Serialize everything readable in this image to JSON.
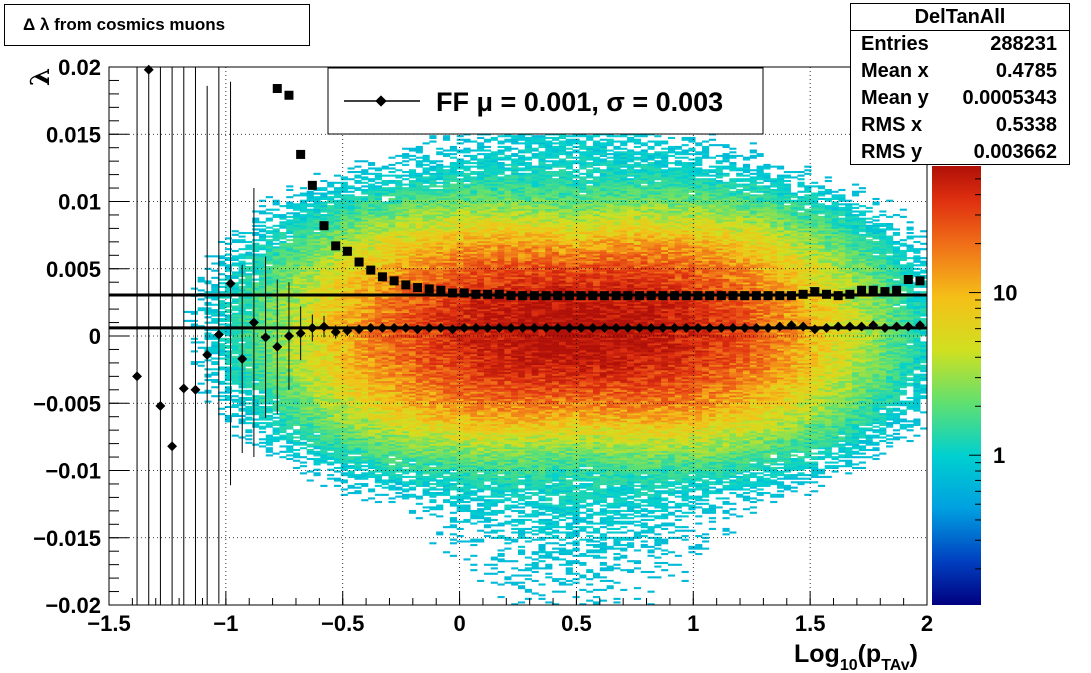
{
  "title": "Δ λ from cosmics muons",
  "stats": {
    "name": "DelTanAll",
    "rows": [
      {
        "label": "Entries",
        "value": "288231"
      },
      {
        "label": "Mean x",
        "value": "0.4785"
      },
      {
        "label": "Mean y",
        "value": "0.0005343"
      },
      {
        "label": "RMS x",
        "value": "0.5338"
      },
      {
        "label": "RMS y",
        "value": "0.003662"
      }
    ]
  },
  "legend": {
    "entry": "FF μ =  0.001, σ =   0.003"
  },
  "colors": {
    "markers": "#000000",
    "palette": [
      "#000080",
      "#0040c0",
      "#00a0e0",
      "#00d0d0",
      "#60e070",
      "#d0e020",
      "#f5c018",
      "#f07018",
      "#e03010",
      "#b01008"
    ]
  },
  "chart_data": {
    "type": "heatmap",
    "xlabel": "Log",
    "xlabel_sub": "10",
    "xlabel_rest": "(p",
    "xlabel_rest_sub": "TAv",
    "xlabel_close": ")",
    "ylabel": "λ",
    "xlim": [
      -1.5,
      2
    ],
    "ylim": [
      -0.02,
      0.02
    ],
    "x_ticks": [
      -1.5,
      -1,
      -0.5,
      0,
      0.5,
      1,
      1.5,
      2
    ],
    "x_tick_labels": [
      "−1.5",
      "−1",
      "−0.5",
      "0",
      "0.5",
      "1",
      "1.5",
      "2"
    ],
    "y_ticks": [
      -0.02,
      -0.015,
      -0.01,
      -0.005,
      0,
      0.005,
      0.01,
      0.015,
      0.02
    ],
    "y_tick_labels": [
      "−0.02",
      "−0.015",
      "−0.01",
      "−0.005",
      "0",
      "0.005",
      "0.01",
      "0.015",
      "0.02"
    ],
    "grid": true,
    "colorbar": {
      "scale": "log",
      "tick_values": [
        1,
        10
      ],
      "tick_labels": [
        "1",
        "10"
      ]
    },
    "density_model": {
      "center_x": 0.5,
      "center_y": 0.0005,
      "peak_count": 60
    },
    "mean_profile": {
      "x": [
        -1.38,
        -1.33,
        -1.28,
        -1.23,
        -1.18,
        -1.13,
        -1.08,
        -1.03,
        -0.98,
        -0.93,
        -0.88,
        -0.83,
        -0.78,
        -0.73,
        -0.68,
        -0.63,
        -0.58,
        -0.53,
        -0.48,
        -0.43,
        -0.38,
        -0.33,
        -0.28,
        -0.23,
        -0.18,
        -0.13,
        -0.08,
        -0.03,
        0.02,
        0.07,
        0.12,
        0.17,
        0.22,
        0.27,
        0.32,
        0.37,
        0.42,
        0.47,
        0.52,
        0.57,
        0.62,
        0.67,
        0.72,
        0.77,
        0.82,
        0.87,
        0.92,
        0.97,
        1.02,
        1.07,
        1.12,
        1.17,
        1.22,
        1.27,
        1.32,
        1.37,
        1.42,
        1.47,
        1.52,
        1.57,
        1.62,
        1.67,
        1.72,
        1.77,
        1.82,
        1.87,
        1.92,
        1.97
      ],
      "y": [
        -0.003,
        0.0198,
        -0.0052,
        -0.0082,
        -0.0039,
        -0.004,
        -0.0014,
        0.0001,
        0.0039,
        -0.0017,
        0.001,
        -0.0001,
        -0.0008,
        0.0,
        0.0002,
        0.0006,
        0.0007,
        0.0003,
        0.0004,
        0.0005,
        0.0006,
        0.0006,
        0.0006,
        0.0006,
        0.0005,
        0.0006,
        0.0006,
        0.0005,
        0.0006,
        0.0006,
        0.0006,
        0.0006,
        0.0006,
        0.0006,
        0.0006,
        0.0006,
        0.0006,
        0.0006,
        0.0006,
        0.0006,
        0.0006,
        0.0006,
        0.0006,
        0.0006,
        0.0006,
        0.0006,
        0.0006,
        0.0006,
        0.0006,
        0.0006,
        0.0006,
        0.0006,
        0.0006,
        0.0006,
        0.0006,
        0.0007,
        0.0008,
        0.0007,
        0.0005,
        0.0006,
        0.0007,
        0.0007,
        0.0007,
        0.0008,
        0.0006,
        0.0007,
        0.0007,
        0.0008
      ],
      "err": [
        0.035,
        0.04,
        0.04,
        0.035,
        0.03,
        0.03,
        0.02,
        0.02,
        0.015,
        0.007,
        0.01,
        0.006,
        0.005,
        0.004,
        0.002,
        0.001,
        0.0008,
        0.0005,
        0.0004,
        0.0003,
        0.0003,
        0.0002,
        0.0002,
        0.0002,
        0.0002,
        0.0002,
        0.0001,
        0.0001,
        0.0001,
        0.0001,
        0.0001,
        0.0001,
        0.0001,
        0.0001,
        0.0001,
        0.0001,
        0.0001,
        0.0001,
        0.0001,
        0.0001,
        0.0001,
        0.0001,
        0.0001,
        0.0001,
        0.0001,
        0.0001,
        0.0001,
        0.0001,
        0.0001,
        0.0001,
        0.0001,
        0.0001,
        0.0001,
        0.0001,
        0.0001,
        0.0001,
        0.0001,
        0.0001,
        0.0001,
        0.0001,
        0.0001,
        0.0001,
        0.0001,
        0.0001,
        0.0001,
        0.0001,
        0.0001,
        0.0001
      ]
    },
    "rms_profile": {
      "x": [
        -0.78,
        -0.73,
        -0.68,
        -0.63,
        -0.58,
        -0.53,
        -0.48,
        -0.43,
        -0.38,
        -0.33,
        -0.28,
        -0.23,
        -0.18,
        -0.13,
        -0.08,
        -0.03,
        0.02,
        0.07,
        0.12,
        0.17,
        0.22,
        0.27,
        0.32,
        0.37,
        0.42,
        0.47,
        0.52,
        0.57,
        0.62,
        0.67,
        0.72,
        0.77,
        0.82,
        0.87,
        0.92,
        0.97,
        1.02,
        1.07,
        1.12,
        1.17,
        1.22,
        1.27,
        1.32,
        1.37,
        1.42,
        1.47,
        1.52,
        1.57,
        1.62,
        1.67,
        1.72,
        1.77,
        1.82,
        1.87,
        1.92,
        1.97
      ],
      "y": [
        0.0184,
        0.0179,
        0.0135,
        0.0112,
        0.0082,
        0.0067,
        0.0063,
        0.0055,
        0.0049,
        0.0044,
        0.0041,
        0.0038,
        0.0036,
        0.0035,
        0.0034,
        0.0032,
        0.0032,
        0.0031,
        0.0031,
        0.0031,
        0.003,
        0.003,
        0.003,
        0.003,
        0.003,
        0.003,
        0.003,
        0.003,
        0.003,
        0.003,
        0.003,
        0.003,
        0.003,
        0.003,
        0.003,
        0.003,
        0.003,
        0.003,
        0.003,
        0.003,
        0.003,
        0.003,
        0.003,
        0.003,
        0.003,
        0.0031,
        0.0033,
        0.0031,
        0.003,
        0.0031,
        0.0034,
        0.0034,
        0.0033,
        0.0034,
        0.0042,
        0.0041
      ]
    },
    "fit_lines": [
      {
        "y": 0.0006
      },
      {
        "y": 0.00305
      }
    ]
  }
}
